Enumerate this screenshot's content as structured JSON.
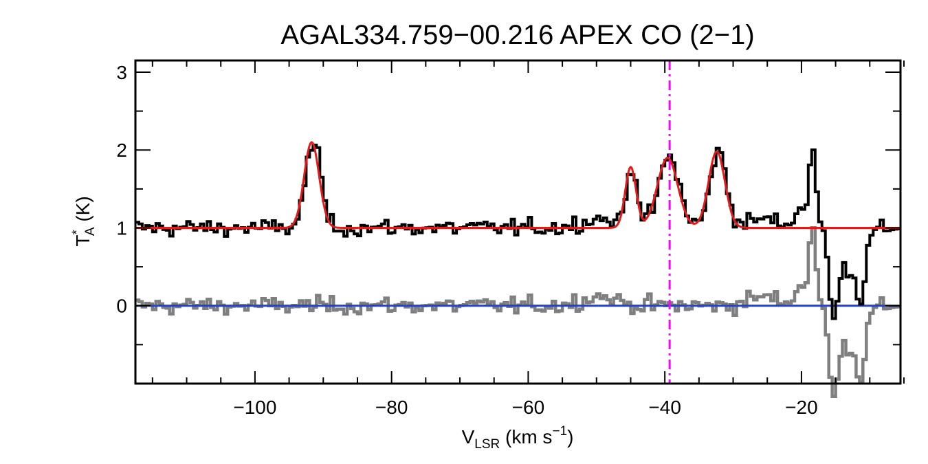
{
  "chart_data": {
    "type": "line",
    "title": "AGAL334.759−00.216  APEX CO (2−1)",
    "xlabel": {
      "main": "V",
      "sub": "LSR",
      "rest": " (km s",
      "sup": "−1",
      "close": ")"
    },
    "ylabel": {
      "main": "T",
      "sup": "*",
      "sub": "A",
      "rest": " (K)"
    },
    "xlim": [
      -117.5,
      -5.5
    ],
    "ylim": [
      -1.0,
      3.15
    ],
    "xticks": [
      -100,
      -80,
      -60,
      -40,
      -20
    ],
    "xtick_labels": [
      "−100",
      "−80",
      "−60",
      "−40",
      "−20"
    ],
    "yticks": [
      0,
      1,
      2,
      3
    ],
    "ytick_labels": [
      "0",
      "1",
      "2",
      "3"
    ],
    "grid": false,
    "baseline": 1.0,
    "fit_components": [
      {
        "center": -91.7,
        "amplitude": 1.1,
        "sigma": 1.1
      },
      {
        "center": -45.0,
        "amplitude": 0.78,
        "sigma": 0.8
      },
      {
        "center": -39.6,
        "amplitude": 0.9,
        "sigma": 1.5
      },
      {
        "center": -32.4,
        "amplitude": 0.98,
        "sigma": 1.2
      }
    ],
    "reference_velocity": -39.3,
    "residual_baseline": 0.0,
    "series": [
      {
        "name": "observed spectrum",
        "color": "#000000",
        "style": "histogram"
      },
      {
        "name": "gaussian fit",
        "color": "#e41a1c",
        "style": "line"
      },
      {
        "name": "residual",
        "color": "#7f7f7f",
        "style": "histogram"
      },
      {
        "name": "zero baseline",
        "color": "#1f3fd6",
        "style": "line"
      },
      {
        "name": "source velocity",
        "color": "#ff00ff",
        "style": "dash-dot"
      }
    ]
  }
}
